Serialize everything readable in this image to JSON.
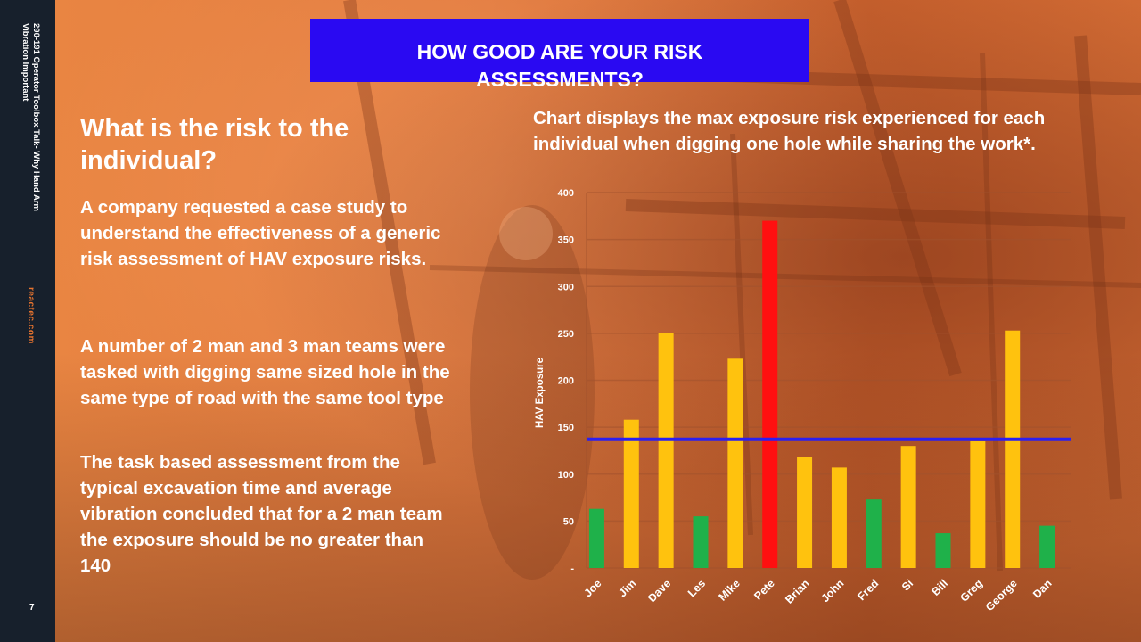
{
  "sidebar": {
    "title_line1": "290-191 Operator Toolbox Talk- Why Hand Arm",
    "title_line2": "Vibration Important",
    "site": "reactec.com",
    "page_number": "7"
  },
  "banner": {
    "line1": "HOW GOOD ARE YOUR RISK",
    "line2": "ASSESSMENTS?",
    "color": "#2a09f2"
  },
  "left": {
    "heading": "What is the risk to the individual?",
    "paragraphs": [
      "A company requested a case study to understand  the effectiveness of a generic risk assessment of HAV exposure risks.",
      "A number of 2 man and 3 man teams were tasked with digging same sized hole in the same type of road with the same tool type",
      "The task based assessment from the typical excavation time and average vibration concluded that for a 2 man team the exposure should be no greater than 140"
    ]
  },
  "chart_title": "Chart displays the max exposure risk experienced for each individual when digging one hole while sharing the work*.",
  "chart_data": {
    "type": "bar",
    "title": "",
    "xlabel": "",
    "ylabel": "HAV Exposure",
    "ylim": [
      0,
      400
    ],
    "yticks": [
      {
        "value": 0,
        "label": "-"
      },
      {
        "value": 50,
        "label": "50"
      },
      {
        "value": 100,
        "label": "100"
      },
      {
        "value": 150,
        "label": "150"
      },
      {
        "value": 200,
        "label": "200"
      },
      {
        "value": 250,
        "label": "250"
      },
      {
        "value": 300,
        "label": "300"
      },
      {
        "value": 350,
        "label": "350"
      },
      {
        "value": 400,
        "label": "400"
      }
    ],
    "grid": true,
    "categories": [
      "Joe",
      "Jim",
      "Dave",
      "Les",
      "Mike",
      "Pete",
      "Brian",
      "John",
      "Fred",
      "Si",
      "Bill",
      "Greg",
      "George",
      "Dan"
    ],
    "values": [
      63,
      158,
      250,
      55,
      223,
      370,
      118,
      107,
      73,
      130,
      37,
      135,
      253,
      45
    ],
    "bar_colors": [
      "#1fb14a",
      "#ffc20e",
      "#ffc20e",
      "#1fb14a",
      "#ffc20e",
      "#ff1010",
      "#ffc20e",
      "#ffc20e",
      "#1fb14a",
      "#ffc20e",
      "#1fb14a",
      "#ffc20e",
      "#ffc20e",
      "#1fb14a"
    ],
    "reference_line": {
      "value": 137,
      "color": "#2a1ff0"
    }
  }
}
